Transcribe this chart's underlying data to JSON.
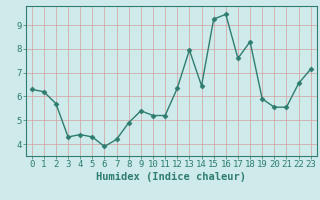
{
  "x": [
    0,
    1,
    2,
    3,
    4,
    5,
    6,
    7,
    8,
    9,
    10,
    11,
    12,
    13,
    14,
    15,
    16,
    17,
    18,
    19,
    20,
    21,
    22,
    23
  ],
  "y": [
    6.3,
    6.2,
    5.7,
    4.3,
    4.4,
    4.3,
    3.9,
    4.2,
    4.9,
    5.4,
    5.2,
    5.2,
    6.35,
    7.95,
    6.45,
    9.25,
    9.45,
    7.6,
    8.3,
    5.9,
    5.55,
    5.55,
    6.55,
    7.15
  ],
  "line_color": "#2e7d6e",
  "marker": "D",
  "markersize": 2.5,
  "linewidth": 1.0,
  "xlabel": "Humidex (Indice chaleur)",
  "xlim": [
    -0.5,
    23.5
  ],
  "ylim": [
    3.5,
    9.8
  ],
  "yticks": [
    4,
    5,
    6,
    7,
    8,
    9
  ],
  "xticks": [
    0,
    1,
    2,
    3,
    4,
    5,
    6,
    7,
    8,
    9,
    10,
    11,
    12,
    13,
    14,
    15,
    16,
    17,
    18,
    19,
    20,
    21,
    22,
    23
  ],
  "bg_color": "#ceeaea",
  "grid_color": "#b8d4d4",
  "axes_color": "#2e7d6e",
  "tick_color": "#2e7d6e",
  "label_color": "#2e7d6e",
  "xlabel_fontsize": 7.5,
  "tick_fontsize": 6.5
}
